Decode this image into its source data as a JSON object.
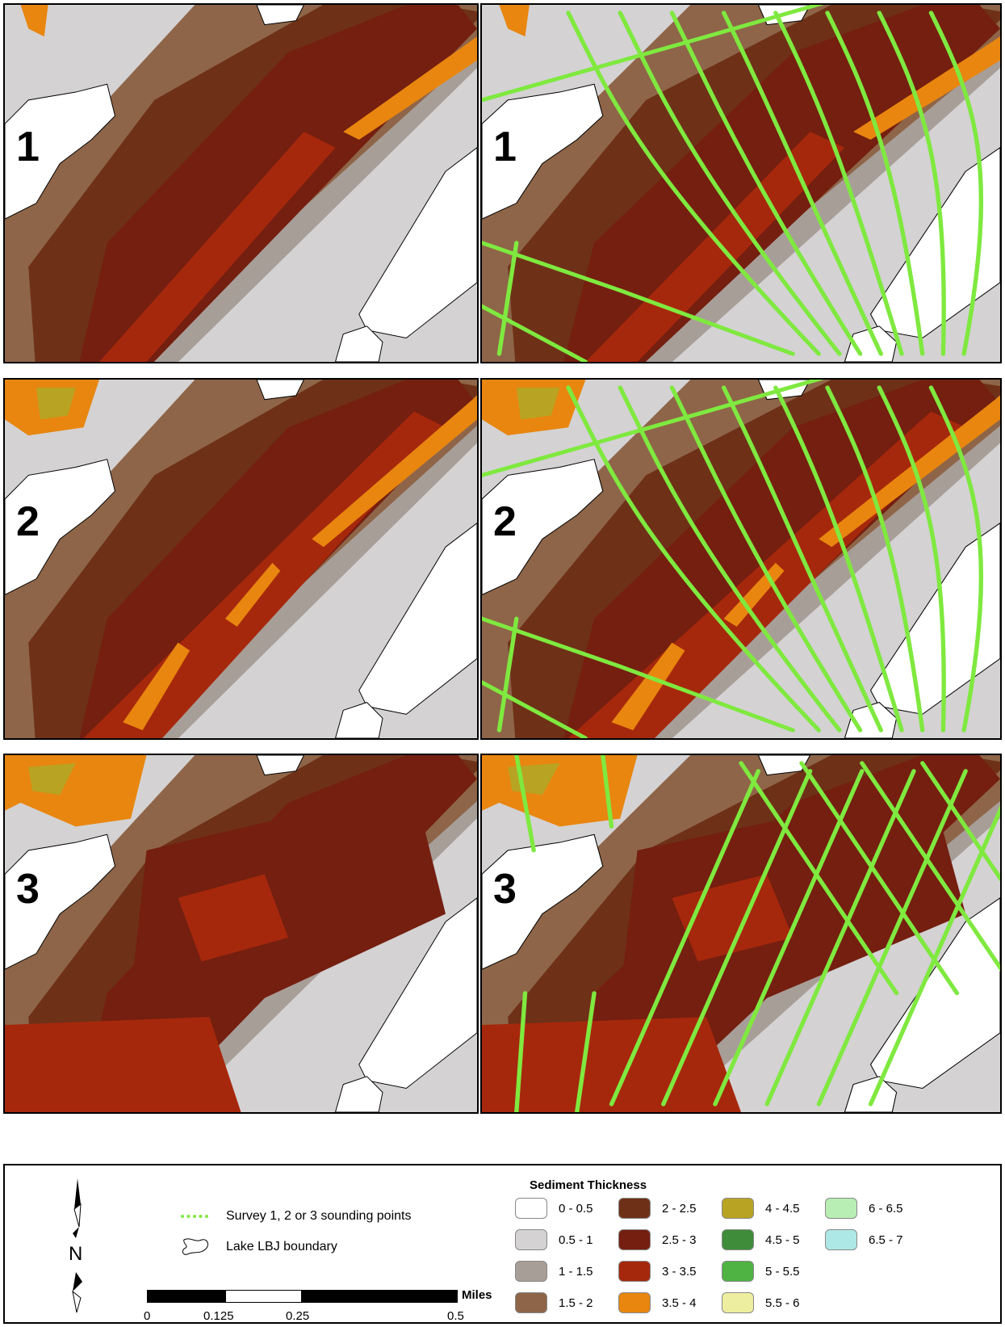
{
  "panels": [
    {
      "number": "1",
      "with_survey": false
    },
    {
      "number": "1",
      "with_survey": true
    },
    {
      "number": "2",
      "with_survey": false
    },
    {
      "number": "2",
      "with_survey": true
    },
    {
      "number": "3",
      "with_survey": false
    },
    {
      "number": "3",
      "with_survey": true
    }
  ],
  "legend": {
    "survey_label": "Survey 1, 2 or 3 sounding points",
    "boundary_label": "Lake LBJ boundary",
    "north_label": "N",
    "title": "Sediment Thickness",
    "classes": [
      {
        "label": "0 - 0.5",
        "color": "#ffffff"
      },
      {
        "label": "0.5 - 1",
        "color": "#d4d2d3"
      },
      {
        "label": "1 - 1.5",
        "color": "#a89e98"
      },
      {
        "label": "1.5 - 2",
        "color": "#8e6548"
      },
      {
        "label": "2 - 2.5",
        "color": "#6e3118"
      },
      {
        "label": "2.5 - 3",
        "color": "#741f10"
      },
      {
        "label": "3 - 3.5",
        "color": "#a6280c"
      },
      {
        "label": "3.5 - 4",
        "color": "#e8860f"
      },
      {
        "label": "4 - 4.5",
        "color": "#b8a422"
      },
      {
        "label": "4.5 - 5",
        "color": "#3f8c3b"
      },
      {
        "label": "5 - 5.5",
        "color": "#4fb343"
      },
      {
        "label": "5.5 - 6",
        "color": "#eeeea0"
      },
      {
        "label": "6 - 6.5",
        "color": "#b8eeb4"
      },
      {
        "label": "6.5 - 7",
        "color": "#aee8e6"
      }
    ],
    "scale": {
      "ticks": [
        "0",
        "0.125",
        "0.25",
        "0.5"
      ],
      "unit": "Miles"
    }
  },
  "colors": {
    "survey_line": "#7fe93f",
    "background": "#ffffff"
  }
}
